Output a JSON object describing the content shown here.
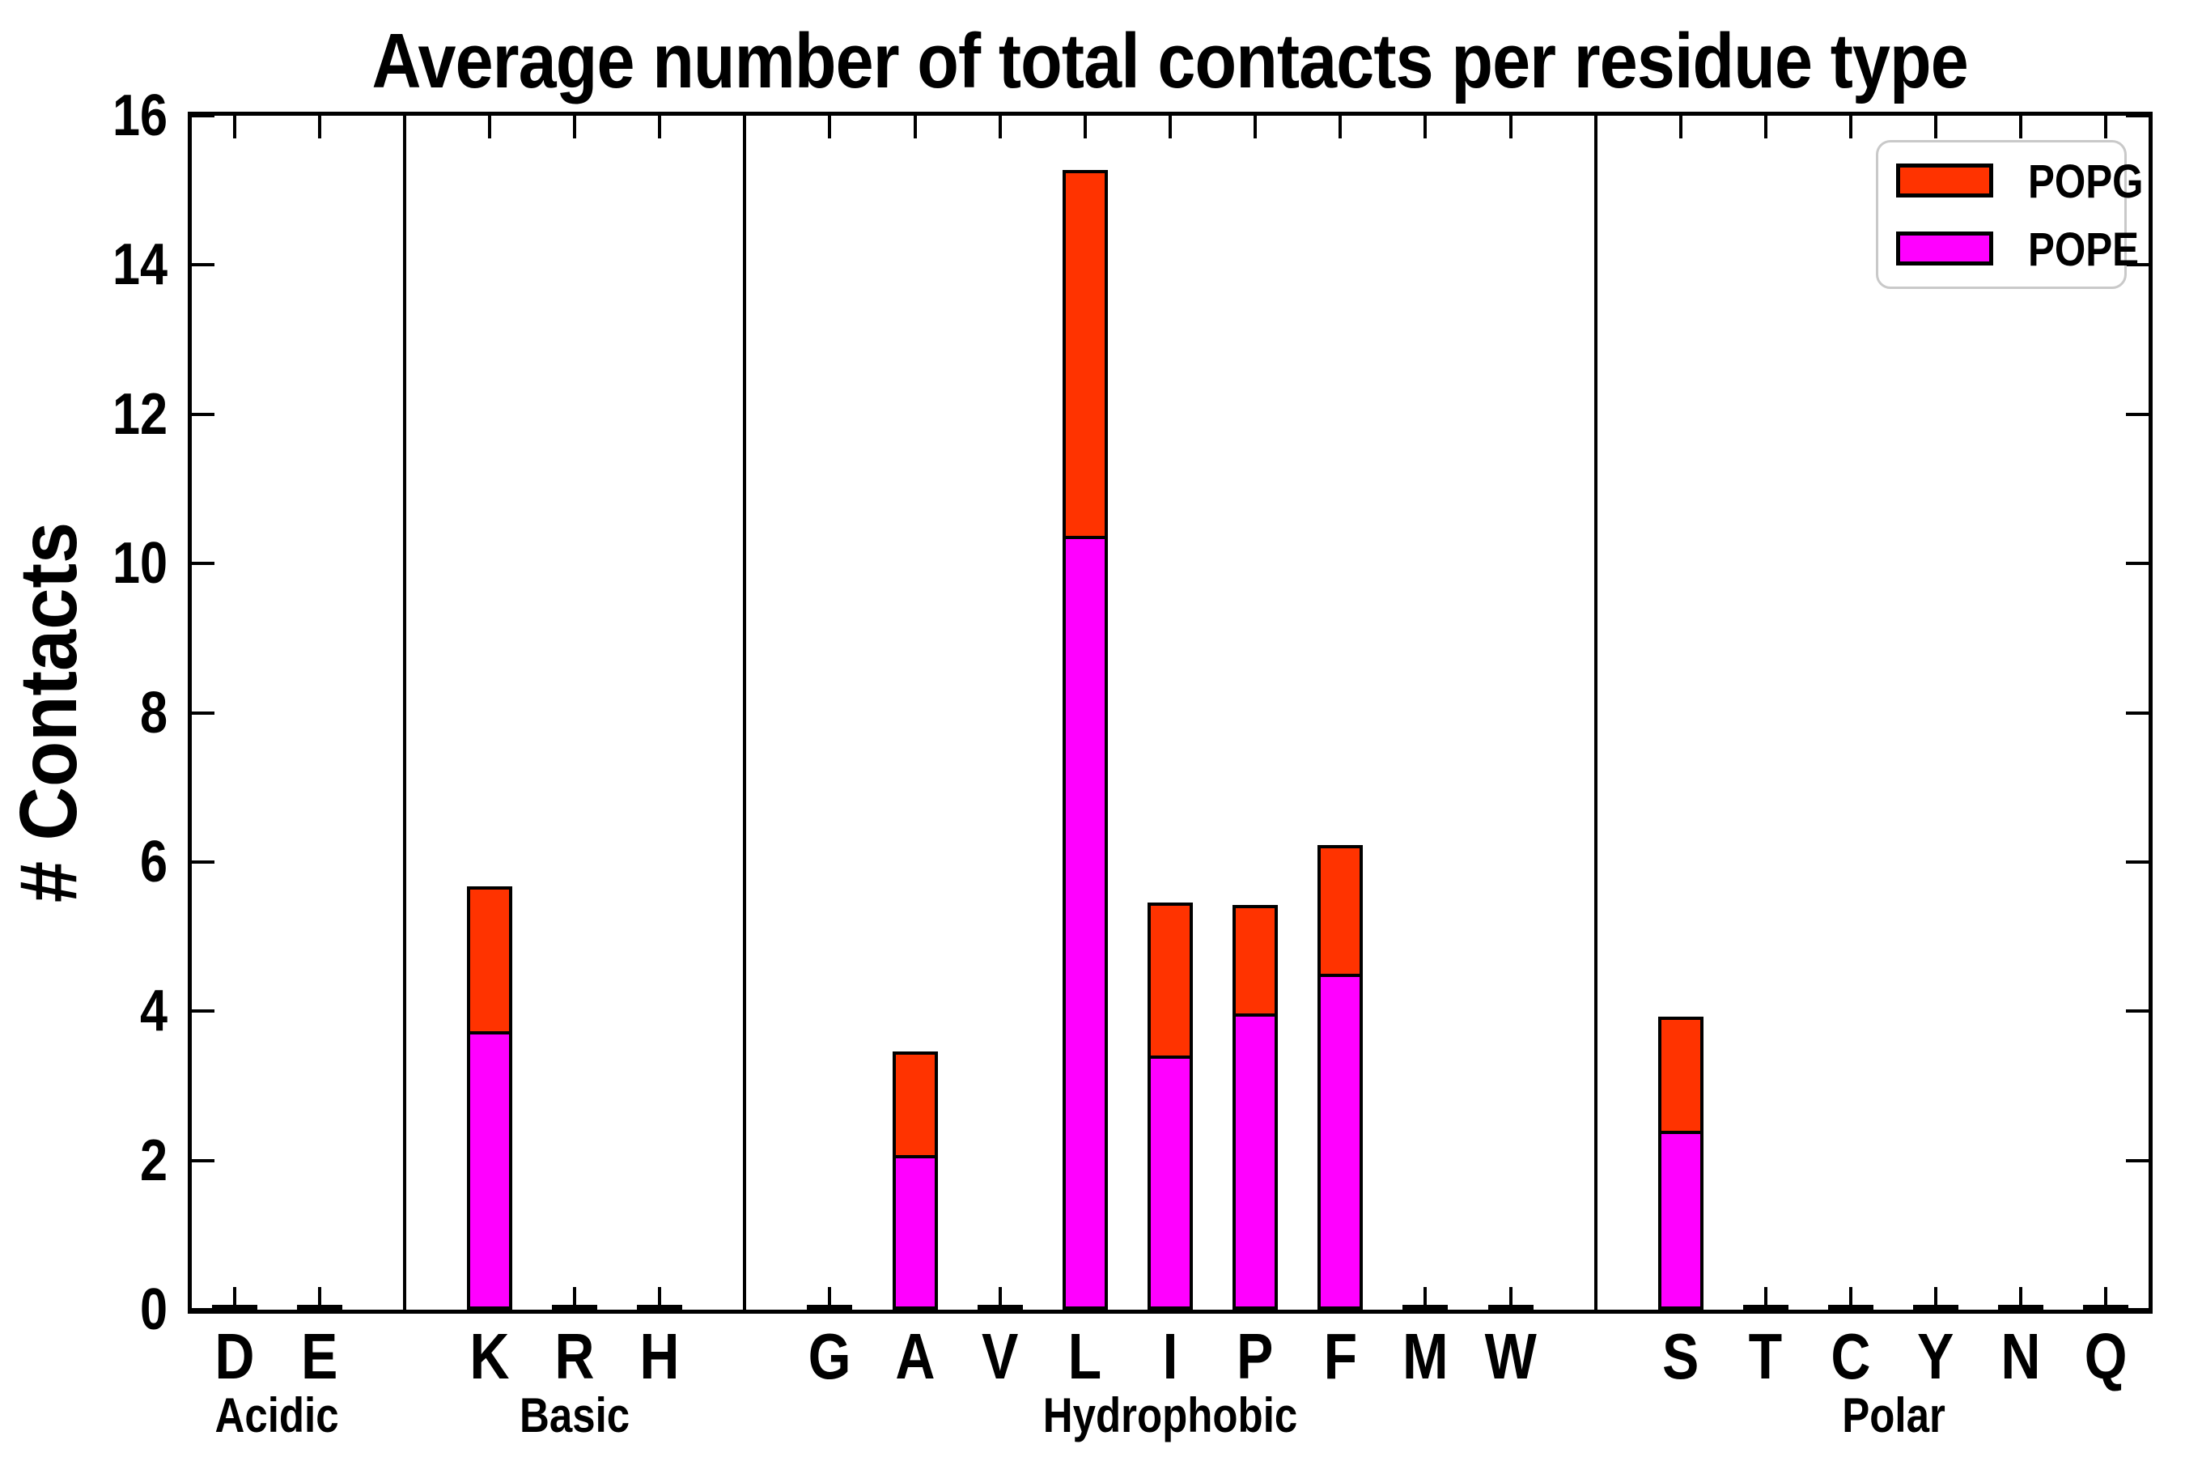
{
  "chart_data": {
    "type": "bar",
    "stacked": true,
    "title": "Average number of total contacts per residue type",
    "ylabel": "# Contacts",
    "xlabel": "",
    "ylim": [
      0,
      16
    ],
    "yticks": [
      0,
      2,
      4,
      6,
      8,
      10,
      12,
      14,
      16
    ],
    "grid": false,
    "legend_position": "upper right",
    "legend_order": [
      "POPG",
      "POPE"
    ],
    "groups": [
      {
        "label": "Acidic",
        "categories": [
          "D",
          "E"
        ]
      },
      {
        "label": "Basic",
        "categories": [
          "K",
          "R",
          "H"
        ]
      },
      {
        "label": "Hydrophobic",
        "categories": [
          "G",
          "A",
          "V",
          "L",
          "I",
          "P",
          "F",
          "M",
          "W"
        ]
      },
      {
        "label": "Polar",
        "categories": [
          "S",
          "T",
          "C",
          "Y",
          "N",
          "Q"
        ]
      }
    ],
    "series": [
      {
        "name": "POPG",
        "color": "#ff3300",
        "values": {
          "D": 0.02,
          "E": 0.02,
          "K": 1.98,
          "R": 0.02,
          "H": 0.02,
          "G": 0.02,
          "A": 1.43,
          "V": 0.02,
          "L": 4.94,
          "I": 2.1,
          "P": 1.49,
          "F": 1.77,
          "M": 0.02,
          "W": 0.02,
          "S": 1.58,
          "T": 0.02,
          "C": 0.02,
          "Y": 0.02,
          "N": 0.02,
          "Q": 0.02
        }
      },
      {
        "name": "POPE",
        "color": "#ff00ff",
        "values": {
          "D": 0.02,
          "E": 0.02,
          "K": 3.69,
          "R": 0.02,
          "H": 0.02,
          "G": 0.02,
          "A": 2.03,
          "V": 0.02,
          "L": 10.33,
          "I": 3.36,
          "P": 3.93,
          "F": 4.46,
          "M": 0.02,
          "W": 0.02,
          "S": 2.35,
          "T": 0.02,
          "C": 0.02,
          "Y": 0.02,
          "N": 0.02,
          "Q": 0.02
        }
      }
    ]
  }
}
